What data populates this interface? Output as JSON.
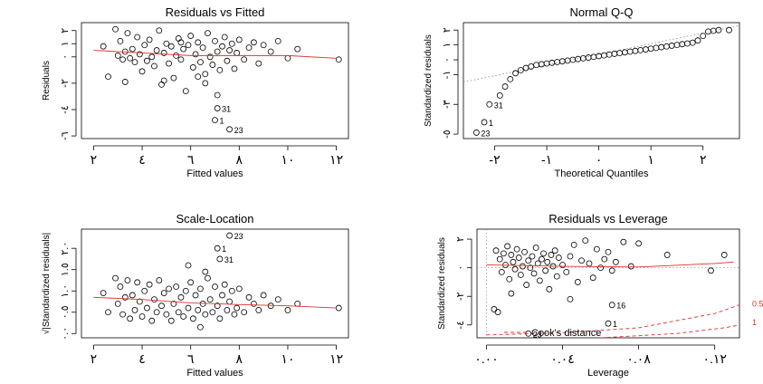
{
  "figure": {
    "panels": [
      {
        "title": "Residuals vs Fitted",
        "xlabel": "Fitted values",
        "ylabel": "Residuals",
        "xticks": [
          {
            "v": 2,
            "label": "٢"
          },
          {
            "v": 4,
            "label": "٤"
          },
          {
            "v": 6,
            "label": "٦"
          },
          {
            "v": 8,
            "label": "٨"
          },
          {
            "v": 10,
            "label": "١٠"
          },
          {
            "v": 12,
            "label": "١٢"
          }
        ],
        "yticks": [
          {
            "v": -6,
            "label": "-٦"
          },
          {
            "v": -4,
            "label": "-٤"
          },
          {
            "v": -2,
            "label": "-٢"
          },
          {
            "v": 0,
            "label": "٠"
          },
          {
            "v": 1,
            "label": "١"
          },
          {
            "v": 2,
            "label": "٢"
          }
        ],
        "point_labels": [
          "31",
          "1",
          "23"
        ]
      },
      {
        "title": "Normal Q-Q",
        "xlabel": "Theoretical Quantiles",
        "ylabel": "Standardized residuals",
        "xticks": [
          {
            "v": -2,
            "label": "-٢"
          },
          {
            "v": -1,
            "label": "-١"
          },
          {
            "v": 0,
            "label": "٠"
          },
          {
            "v": 1,
            "label": "١"
          },
          {
            "v": 2,
            "label": "٢"
          }
        ],
        "yticks": [
          {
            "v": -5,
            "label": "-٥"
          },
          {
            "v": -3,
            "label": "-٣"
          },
          {
            "v": -1,
            "label": "-١"
          },
          {
            "v": 0,
            "label": "٠"
          },
          {
            "v": 1,
            "label": "١"
          },
          {
            "v": 2,
            "label": "٢"
          }
        ],
        "point_labels": [
          "31",
          "1",
          "23"
        ]
      },
      {
        "title": "Scale-Location",
        "xlabel": "Fitted values",
        "ylabel": "√|Standardized residuals|",
        "xticks": [
          {
            "v": 2,
            "label": "٢"
          },
          {
            "v": 4,
            "label": "٤"
          },
          {
            "v": 6,
            "label": "٦"
          },
          {
            "v": 8,
            "label": "٨"
          },
          {
            "v": 10,
            "label": "١٠"
          },
          {
            "v": 12,
            "label": "١٢"
          }
        ],
        "yticks": [
          {
            "v": 0,
            "label": "٠.٠"
          },
          {
            "v": 0.5,
            "label": "٠.٥"
          },
          {
            "v": 1.0,
            "label": "١.٠"
          },
          {
            "v": 1.5,
            "label": "١.٥"
          },
          {
            "v": 2.0,
            "label": "٢.٠"
          }
        ],
        "point_labels": [
          "23",
          "1",
          "31"
        ]
      },
      {
        "title": "Residuals vs Leverage",
        "xlabel": "Leverage",
        "ylabel": "Standardized residuals",
        "xticks": [
          {
            "v": 0,
            "label": "٠.٠٠"
          },
          {
            "v": 0.04,
            "label": "٠.٠٤"
          },
          {
            "v": 0.08,
            "label": "٠.٠٨"
          },
          {
            "v": 0.12,
            "label": "٠.١٢"
          }
        ],
        "yticks": [
          {
            "v": -4,
            "label": "-٤"
          },
          {
            "v": -2,
            "label": "-٢"
          },
          {
            "v": 0,
            "label": "٠"
          },
          {
            "v": 2,
            "label": "٢"
          }
        ],
        "point_labels": [
          "16",
          "1",
          "23"
        ],
        "legend": "Cook's distance",
        "contour_labels": [
          "0.5",
          "1"
        ]
      }
    ]
  },
  "chart_data": [
    {
      "type": "scatter",
      "title": "Residuals vs Fitted",
      "xlabel": "Fitted values",
      "ylabel": "Residuals",
      "xlim": [
        1.5,
        12.5
      ],
      "ylim": [
        -6.2,
        2.6
      ],
      "grid": false,
      "points": [
        [
          2.4,
          0.8
        ],
        [
          2.6,
          -1.5
        ],
        [
          2.9,
          2.1
        ],
        [
          3.0,
          0.1
        ],
        [
          3.1,
          1.2
        ],
        [
          3.2,
          -0.2
        ],
        [
          3.3,
          0.4
        ],
        [
          3.4,
          1.8
        ],
        [
          3.5,
          -0.1
        ],
        [
          3.6,
          0.6
        ],
        [
          3.7,
          -0.4
        ],
        [
          3.8,
          1.5
        ],
        [
          3.9,
          0.2
        ],
        [
          4.0,
          -1.1
        ],
        [
          4.1,
          0.9
        ],
        [
          4.2,
          -0.3
        ],
        [
          4.3,
          1.3
        ],
        [
          4.4,
          0.0
        ],
        [
          4.5,
          -0.7
        ],
        [
          4.6,
          0.5
        ],
        [
          4.7,
          2.0
        ],
        [
          4.8,
          -2.1
        ],
        [
          4.9,
          0.3
        ],
        [
          5.0,
          1.0
        ],
        [
          5.1,
          -0.5
        ],
        [
          5.2,
          0.8
        ],
        [
          5.3,
          -1.6
        ],
        [
          5.4,
          0.1
        ],
        [
          5.5,
          1.4
        ],
        [
          5.6,
          -0.2
        ],
        [
          5.7,
          0.6
        ],
        [
          5.8,
          -2.6
        ],
        [
          5.9,
          0.9
        ],
        [
          6.0,
          1.6
        ],
        [
          6.1,
          -0.8
        ],
        [
          6.2,
          0.2
        ],
        [
          6.3,
          1.1
        ],
        [
          6.4,
          -0.4
        ],
        [
          6.5,
          0.7
        ],
        [
          6.6,
          -1.3
        ],
        [
          6.7,
          1.8
        ],
        [
          6.8,
          0.0
        ],
        [
          6.9,
          -0.6
        ],
        [
          7.0,
          1.2
        ],
        [
          7.1,
          0.4
        ],
        [
          7.2,
          -1.0
        ],
        [
          7.3,
          0.8
        ],
        [
          7.4,
          1.5
        ],
        [
          7.5,
          -0.3
        ],
        [
          7.6,
          0.5
        ],
        [
          7.7,
          1.0
        ],
        [
          7.8,
          -0.9
        ],
        [
          7.9,
          0.3
        ],
        [
          8.0,
          1.3
        ],
        [
          8.2,
          -0.2
        ],
        [
          8.4,
          0.7
        ],
        [
          8.6,
          1.1
        ],
        [
          8.8,
          -0.5
        ],
        [
          9.0,
          0.9
        ],
        [
          9.3,
          0.4
        ],
        [
          9.6,
          1.2
        ],
        [
          10.0,
          -0.1
        ],
        [
          10.4,
          0.6
        ],
        [
          12.1,
          -0.2
        ],
        [
          4.9,
          -1.8
        ],
        [
          6.6,
          -2.0
        ],
        [
          7.1,
          -2.9
        ],
        [
          3.3,
          -1.9
        ],
        [
          5.6,
          1.1
        ],
        [
          6.3,
          -1.5
        ]
      ],
      "labeled_points": [
        {
          "label": "31",
          "x": 7.1,
          "y": -3.9
        },
        {
          "label": "1",
          "x": 7.0,
          "y": -4.8
        },
        {
          "label": "23",
          "x": 7.6,
          "y": -5.5
        }
      ],
      "smooth": [
        [
          2.0,
          0.5
        ],
        [
          4.0,
          0.3
        ],
        [
          6.0,
          0.1
        ],
        [
          8.0,
          0.1
        ],
        [
          10.0,
          0.1
        ],
        [
          12.0,
          -0.1
        ]
      ]
    },
    {
      "type": "scatter",
      "title": "Normal Q-Q",
      "xlabel": "Theoretical Quantiles",
      "ylabel": "Standardized residuals",
      "xlim": [
        -2.6,
        2.7
      ],
      "ylim": [
        -5.3,
        2.5
      ],
      "grid": false,
      "points": [
        [
          -1.9,
          -2.4
        ],
        [
          -1.8,
          -1.8
        ],
        [
          -1.7,
          -1.3
        ],
        [
          -1.6,
          -0.9
        ],
        [
          -1.5,
          -0.7
        ],
        [
          -1.4,
          -0.55
        ],
        [
          -1.3,
          -0.45
        ],
        [
          -1.2,
          -0.35
        ],
        [
          -1.1,
          -0.3
        ],
        [
          -1.0,
          -0.25
        ],
        [
          -0.9,
          -0.2
        ],
        [
          -0.8,
          -0.15
        ],
        [
          -0.7,
          -0.1
        ],
        [
          -0.6,
          -0.05
        ],
        [
          -0.5,
          0.0
        ],
        [
          -0.4,
          0.05
        ],
        [
          -0.3,
          0.1
        ],
        [
          -0.2,
          0.15
        ],
        [
          -0.1,
          0.2
        ],
        [
          0.0,
          0.25
        ],
        [
          0.1,
          0.3
        ],
        [
          0.2,
          0.35
        ],
        [
          0.3,
          0.4
        ],
        [
          0.4,
          0.45
        ],
        [
          0.5,
          0.5
        ],
        [
          0.6,
          0.55
        ],
        [
          0.7,
          0.6
        ],
        [
          0.8,
          0.65
        ],
        [
          0.9,
          0.7
        ],
        [
          1.0,
          0.75
        ],
        [
          1.1,
          0.8
        ],
        [
          1.2,
          0.85
        ],
        [
          1.3,
          0.9
        ],
        [
          1.4,
          0.95
        ],
        [
          1.5,
          1.0
        ],
        [
          1.6,
          1.05
        ],
        [
          1.7,
          1.1
        ],
        [
          1.8,
          1.15
        ],
        [
          1.9,
          1.3
        ],
        [
          2.0,
          1.6
        ],
        [
          2.1,
          1.9
        ],
        [
          2.2,
          1.95
        ],
        [
          2.3,
          2.0
        ],
        [
          2.5,
          2.0
        ]
      ],
      "labeled_points": [
        {
          "label": "31",
          "x": -2.1,
          "y": -3.0
        },
        {
          "label": "1",
          "x": -2.2,
          "y": -4.2
        },
        {
          "label": "23",
          "x": -2.35,
          "y": -4.9
        }
      ],
      "reference_line": [
        [
          -2.6,
          -1.5
        ],
        [
          2.7,
          2.3
        ]
      ]
    },
    {
      "type": "scatter",
      "title": "Scale-Location",
      "xlabel": "Fitted values",
      "ylabel": "√|Standardized residuals|",
      "xlim": [
        1.5,
        12.5
      ],
      "ylim": [
        -0.1,
        2.45
      ],
      "grid": false,
      "points": [
        [
          2.4,
          0.95
        ],
        [
          2.6,
          0.5
        ],
        [
          2.9,
          1.3
        ],
        [
          3.0,
          0.7
        ],
        [
          3.1,
          1.1
        ],
        [
          3.2,
          0.45
        ],
        [
          3.3,
          0.85
        ],
        [
          3.4,
          1.25
        ],
        [
          3.5,
          0.35
        ],
        [
          3.6,
          0.9
        ],
        [
          3.7,
          0.55
        ],
        [
          3.8,
          1.2
        ],
        [
          3.9,
          0.75
        ],
        [
          4.0,
          0.4
        ],
        [
          4.1,
          1.0
        ],
        [
          4.2,
          0.6
        ],
        [
          4.3,
          1.15
        ],
        [
          4.4,
          0.3
        ],
        [
          4.5,
          0.8
        ],
        [
          4.6,
          0.5
        ],
        [
          4.7,
          1.25
        ],
        [
          4.8,
          0.65
        ],
        [
          4.9,
          0.95
        ],
        [
          5.0,
          0.45
        ],
        [
          5.1,
          1.05
        ],
        [
          5.2,
          0.3
        ],
        [
          5.3,
          0.7
        ],
        [
          5.4,
          1.1
        ],
        [
          5.5,
          0.5
        ],
        [
          5.6,
          0.85
        ],
        [
          5.7,
          0.4
        ],
        [
          5.8,
          1.0
        ],
        [
          5.9,
          0.6
        ],
        [
          6.0,
          1.2
        ],
        [
          6.1,
          0.35
        ],
        [
          6.2,
          0.9
        ],
        [
          6.3,
          0.55
        ],
        [
          6.4,
          1.05
        ],
        [
          6.5,
          0.7
        ],
        [
          6.6,
          0.45
        ],
        [
          6.7,
          1.3
        ],
        [
          6.8,
          0.8
        ],
        [
          6.9,
          0.5
        ],
        [
          7.0,
          1.1
        ],
        [
          7.1,
          0.65
        ],
        [
          7.2,
          0.35
        ],
        [
          7.3,
          0.9
        ],
        [
          7.4,
          1.15
        ],
        [
          7.5,
          0.55
        ],
        [
          7.6,
          0.75
        ],
        [
          7.7,
          1.0
        ],
        [
          7.8,
          0.45
        ],
        [
          7.9,
          0.6
        ],
        [
          8.0,
          1.05
        ],
        [
          8.2,
          0.5
        ],
        [
          8.4,
          0.85
        ],
        [
          8.6,
          0.7
        ],
        [
          8.8,
          0.55
        ],
        [
          9.0,
          0.9
        ],
        [
          9.3,
          0.65
        ],
        [
          9.6,
          0.8
        ],
        [
          10.0,
          0.55
        ],
        [
          10.4,
          0.7
        ],
        [
          12.1,
          0.6
        ],
        [
          5.9,
          1.6
        ],
        [
          6.6,
          1.45
        ],
        [
          6.4,
          0.15
        ]
      ],
      "labeled_points": [
        {
          "label": "23",
          "x": 7.6,
          "y": 2.3
        },
        {
          "label": "1",
          "x": 7.1,
          "y": 2.0
        },
        {
          "label": "31",
          "x": 7.2,
          "y": 1.75
        }
      ],
      "smooth": [
        [
          2.0,
          0.85
        ],
        [
          4.0,
          0.8
        ],
        [
          6.0,
          0.72
        ],
        [
          8.0,
          0.68
        ],
        [
          10.0,
          0.65
        ],
        [
          12.0,
          0.6
        ]
      ]
    },
    {
      "type": "scatter",
      "title": "Residuals vs Leverage",
      "xlabel": "Leverage",
      "ylabel": "Standardized residuals",
      "xlim": [
        -0.005,
        0.133
      ],
      "ylim": [
        -4.9,
        2.7
      ],
      "grid": false,
      "legend": "Cook's distance",
      "points": [
        [
          0.005,
          1.2
        ],
        [
          0.007,
          0.6
        ],
        [
          0.008,
          -0.3
        ],
        [
          0.009,
          1.0
        ],
        [
          0.01,
          0.2
        ],
        [
          0.011,
          1.5
        ],
        [
          0.012,
          -0.8
        ],
        [
          0.013,
          0.9
        ],
        [
          0.014,
          0.4
        ],
        [
          0.015,
          -0.1
        ],
        [
          0.016,
          1.3
        ],
        [
          0.017,
          0.7
        ],
        [
          0.018,
          -0.5
        ],
        [
          0.019,
          0.1
        ],
        [
          0.02,
          1.1
        ],
        [
          0.021,
          -1.2
        ],
        [
          0.022,
          0.5
        ],
        [
          0.023,
          0.0
        ],
        [
          0.024,
          0.8
        ],
        [
          0.025,
          -0.4
        ],
        [
          0.026,
          1.4
        ],
        [
          0.027,
          0.3
        ],
        [
          0.028,
          -0.9
        ],
        [
          0.029,
          0.6
        ],
        [
          0.03,
          1.0
        ],
        [
          0.031,
          -0.2
        ],
        [
          0.032,
          0.4
        ],
        [
          0.033,
          -1.5
        ],
        [
          0.034,
          0.9
        ],
        [
          0.035,
          0.1
        ],
        [
          0.036,
          1.2
        ],
        [
          0.037,
          -0.6
        ],
        [
          0.038,
          0.7
        ],
        [
          0.04,
          0.2
        ],
        [
          0.042,
          -0.3
        ],
        [
          0.044,
          0.8
        ],
        [
          0.046,
          1.6
        ],
        [
          0.048,
          -1.0
        ],
        [
          0.05,
          0.5
        ],
        [
          0.052,
          1.9
        ],
        [
          0.054,
          0.3
        ],
        [
          0.056,
          -0.7
        ],
        [
          0.058,
          1.3
        ],
        [
          0.06,
          0.0
        ],
        [
          0.062,
          0.6
        ],
        [
          0.064,
          1.1
        ],
        [
          0.066,
          -0.2
        ],
        [
          0.068,
          0.4
        ],
        [
          0.072,
          1.8
        ],
        [
          0.076,
          0.1
        ],
        [
          0.08,
          1.7
        ],
        [
          0.095,
          0.9
        ],
        [
          0.118,
          -0.2
        ],
        [
          0.125,
          0.9
        ],
        [
          0.004,
          -2.9
        ],
        [
          0.006,
          -3.1
        ],
        [
          0.013,
          -1.8
        ],
        [
          0.044,
          -2.2
        ]
      ],
      "labeled_points": [
        {
          "label": "16",
          "x": 0.066,
          "y": -2.6
        },
        {
          "label": "1",
          "x": 0.064,
          "y": -3.9
        },
        {
          "label": "23",
          "x": 0.022,
          "y": -4.6
        }
      ],
      "smooth": [
        [
          0.0,
          0.2
        ],
        [
          0.04,
          0.1
        ],
        [
          0.08,
          0.05
        ],
        [
          0.12,
          0.3
        ],
        [
          0.13,
          0.4
        ]
      ],
      "cooks_distance_levels": [
        0.5,
        1
      ]
    }
  ]
}
